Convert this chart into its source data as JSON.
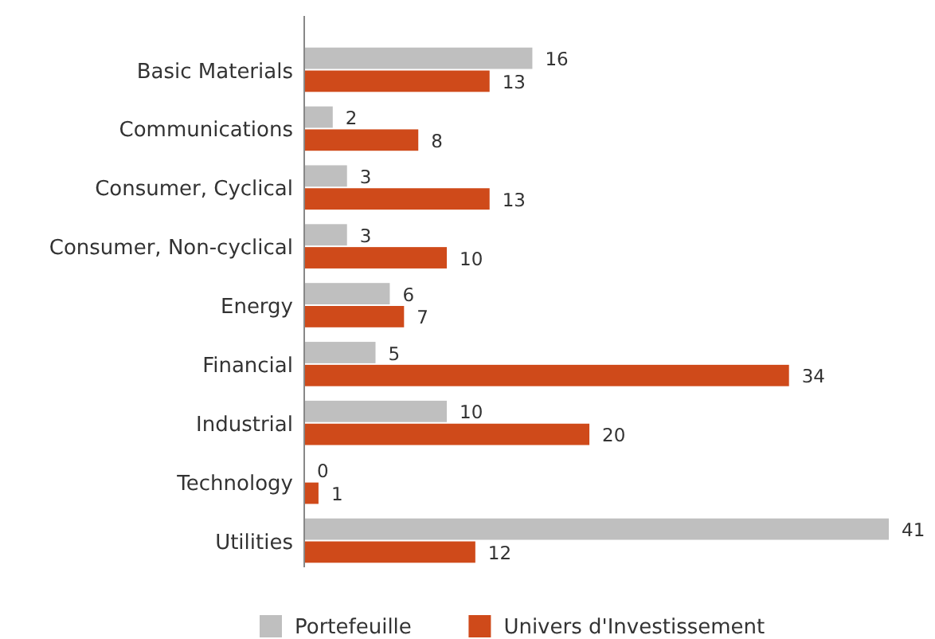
{
  "chart_data": {
    "type": "bar",
    "orientation": "horizontal",
    "categories": [
      "Basic Materials",
      "Communications",
      "Consumer, Cyclical",
      "Consumer, Non-cyclical",
      "Energy",
      "Financial",
      "Industrial",
      "Technology",
      "Utilities"
    ],
    "series": [
      {
        "name": "Portefeuille",
        "color": "#bfbfbf",
        "values": [
          16,
          2,
          3,
          3,
          6,
          5,
          10,
          0,
          41
        ]
      },
      {
        "name": "Univers d'Investissement",
        "color": "#cf4a1a",
        "values": [
          13,
          8,
          13,
          10,
          7,
          34,
          20,
          1,
          12
        ]
      }
    ],
    "data_labels": true,
    "legend": "bottom",
    "tick_labels": "y"
  }
}
